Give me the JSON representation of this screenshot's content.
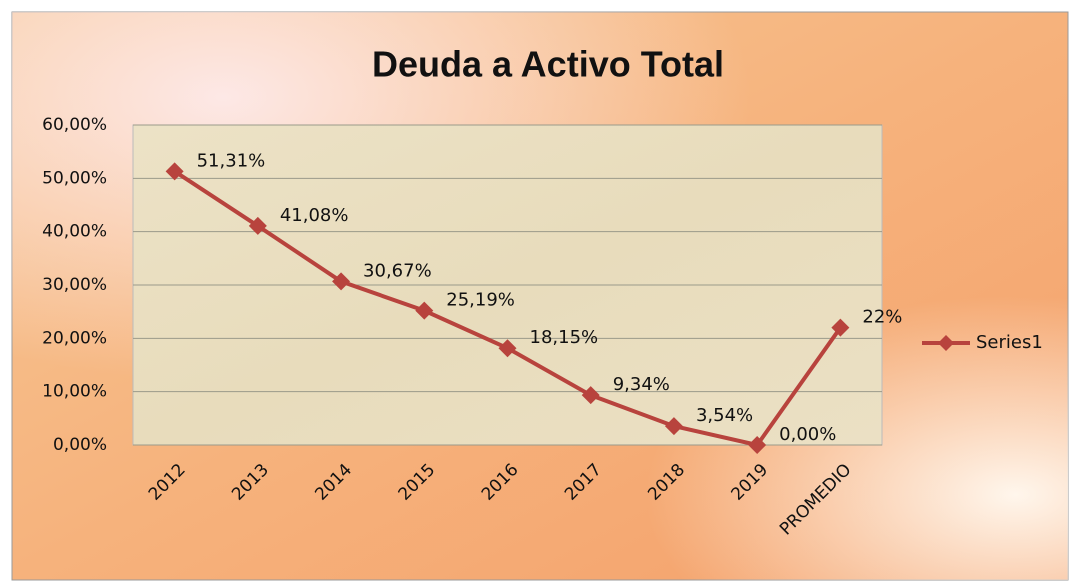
{
  "chart_data": {
    "type": "line",
    "title": "Deuda a Activo Total",
    "categories": [
      "2012",
      "2013",
      "2014",
      "2015",
      "2016",
      "2017",
      "2018",
      "2019",
      "PROMEDIO"
    ],
    "series": [
      {
        "name": "Series1",
        "color": "#b8433d",
        "values": [
          51.31,
          41.08,
          30.67,
          25.19,
          18.15,
          9.34,
          3.54,
          0,
          22
        ],
        "value_labels": [
          "51,31%",
          "41,08%",
          "30,67%",
          "25,19%",
          "18,15%",
          "9,34%",
          "3,54%",
          "0,00%",
          "22%"
        ]
      }
    ],
    "ylim": [
      0,
      60
    ],
    "yticks": [
      {
        "value": 0,
        "label": "0,00%"
      },
      {
        "value": 10,
        "label": "10,00%"
      },
      {
        "value": 20,
        "label": "20,00%"
      },
      {
        "value": 30,
        "label": "30,00%"
      },
      {
        "value": 40,
        "label": "40,00%"
      },
      {
        "value": 50,
        "label": "50,00%"
      },
      {
        "value": 60,
        "label": "60,00%"
      }
    ],
    "grid": true,
    "legend": "right"
  }
}
